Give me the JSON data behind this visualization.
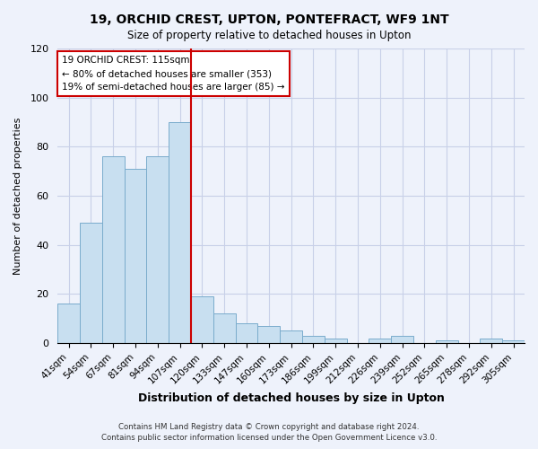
{
  "title": "19, ORCHID CREST, UPTON, PONTEFRACT, WF9 1NT",
  "subtitle": "Size of property relative to detached houses in Upton",
  "xlabel": "Distribution of detached houses by size in Upton",
  "ylabel": "Number of detached properties",
  "bar_color": "#c8dff0",
  "bar_edge_color": "#7aaccc",
  "categories": [
    "41sqm",
    "54sqm",
    "67sqm",
    "81sqm",
    "94sqm",
    "107sqm",
    "120sqm",
    "133sqm",
    "147sqm",
    "160sqm",
    "173sqm",
    "186sqm",
    "199sqm",
    "212sqm",
    "226sqm",
    "239sqm",
    "252sqm",
    "265sqm",
    "278sqm",
    "292sqm",
    "305sqm"
  ],
  "values": [
    16,
    49,
    76,
    71,
    76,
    90,
    19,
    12,
    8,
    7,
    5,
    3,
    2,
    0,
    2,
    3,
    0,
    1,
    0,
    2,
    1
  ],
  "vline_x": 6.0,
  "vline_color": "#cc0000",
  "annotation_title": "19 ORCHID CREST: 115sqm",
  "annotation_line1": "← 80% of detached houses are smaller (353)",
  "annotation_line2": "19% of semi-detached houses are larger (85) →",
  "ylim": [
    0,
    120
  ],
  "yticks": [
    0,
    20,
    40,
    60,
    80,
    100,
    120
  ],
  "footer1": "Contains HM Land Registry data © Crown copyright and database right 2024.",
  "footer2": "Contains public sector information licensed under the Open Government Licence v3.0.",
  "background_color": "#eef2fb",
  "plot_bg_color": "#eef2fb",
  "grid_color": "#c8d0e8"
}
